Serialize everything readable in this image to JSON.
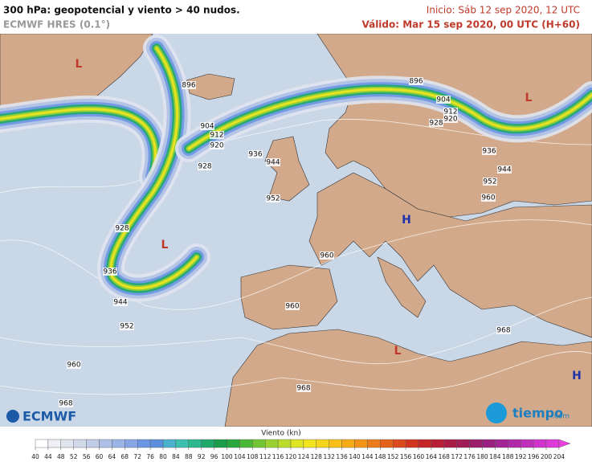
{
  "header": {
    "title": "300 hPa: geopotencial y viento > 40 nudos.",
    "model": "ECMWF HRES (0.1°)",
    "init": "Inicio: Sáb 12 sep 2020, 12 UTC",
    "valid": "Válido: Mar 15 sep 2020, 00 UTC (H+60)"
  },
  "map": {
    "contour_labels": [
      896,
      896,
      904,
      912,
      920,
      928,
      936,
      944,
      952,
      928,
      936,
      944,
      952,
      960,
      968,
      904,
      912,
      920,
      928,
      936,
      944,
      952,
      960,
      960,
      960,
      968,
      968
    ],
    "pressure_centers": [
      "L",
      "L",
      "L",
      "L",
      "H",
      "H"
    ]
  },
  "legend": {
    "title": "Viento (kn)",
    "ticks": [
      40,
      44,
      48,
      52,
      56,
      60,
      64,
      68,
      72,
      76,
      80,
      84,
      88,
      92,
      96,
      100,
      104,
      108,
      112,
      116,
      120,
      124,
      128,
      132,
      136,
      140,
      144,
      148,
      152,
      156,
      160,
      164,
      168,
      172,
      176,
      180,
      184,
      188,
      192,
      196,
      200,
      204
    ],
    "colors": [
      "#ffffff",
      "#eef0f5",
      "#e0e4ef",
      "#d0d9ea",
      "#c0cde8",
      "#aec0e6",
      "#9bb4e6",
      "#86a6e6",
      "#6b96e3",
      "#5c8fdd",
      "#4bb0cc",
      "#3cc0b0",
      "#2ab88f",
      "#1faa6b",
      "#1a9d4a",
      "#28a83a",
      "#4cb838",
      "#73c535",
      "#9ad232",
      "#bcdc2c",
      "#dde525",
      "#f2e51f",
      "#f7d51a",
      "#f8c018",
      "#f6aa17",
      "#f29418",
      "#ec7c1a",
      "#e5621c",
      "#dd4a1e",
      "#d23420",
      "#c62428",
      "#b81e36",
      "#aa1c46",
      "#a01d58",
      "#9a1e6a",
      "#9a2080",
      "#a32495",
      "#b02aa8",
      "#c02fbb",
      "#d034cc",
      "#de3ad9",
      "#e840e0"
    ]
  },
  "logos": {
    "left": "ECMWF",
    "right": "tiempo",
    "right_suffix": ".com"
  }
}
